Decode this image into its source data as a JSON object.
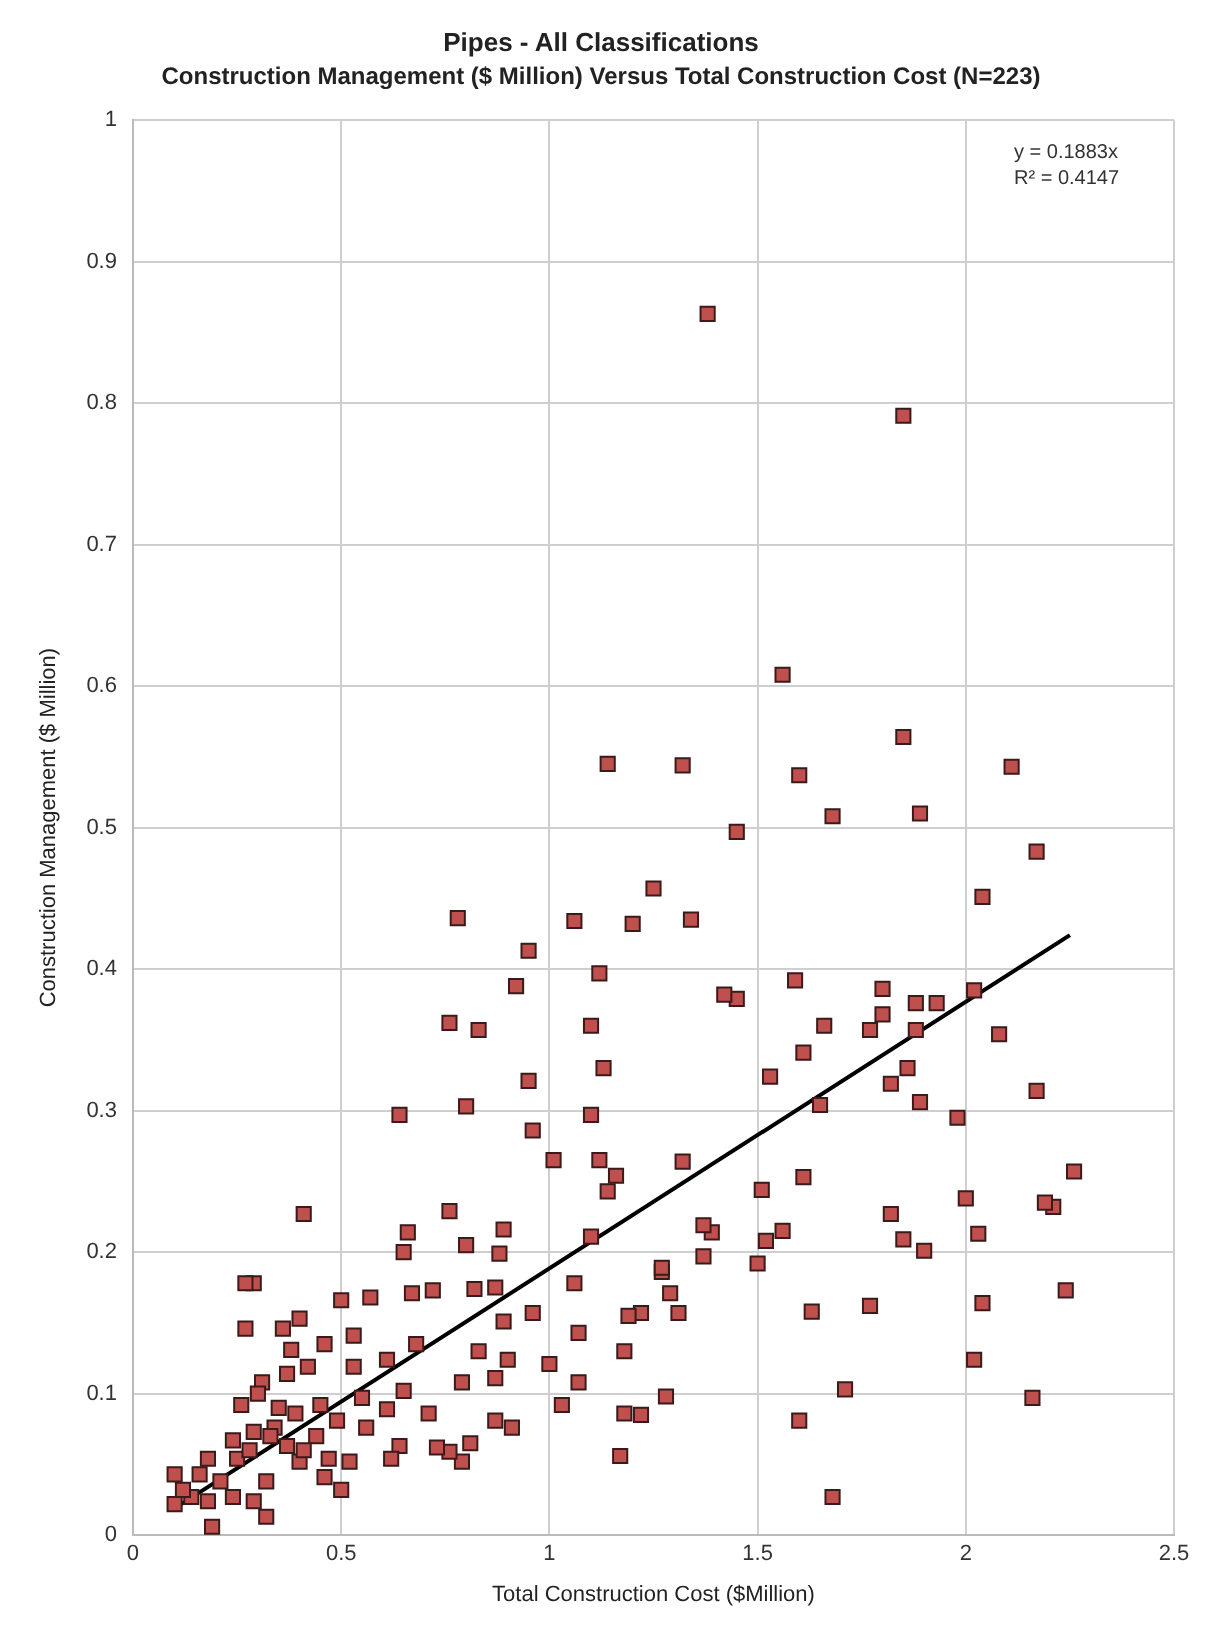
{
  "chart_data": {
    "type": "scatter",
    "title": "Pipes - All Classifications",
    "subtitle": "Construction Management ($ Million) Versus Total Construction Cost (N=223)",
    "xlabel": "Total Construction Cost ($Million)",
    "ylabel": "Construction Management ($ Million)",
    "xlim": [
      0,
      2.5
    ],
    "xticks": [
      0,
      0.5,
      1,
      1.5,
      2,
      2.5
    ],
    "ylim": [
      0,
      1
    ],
    "yticks": [
      0,
      0.1,
      0.2,
      0.3,
      0.4,
      0.5,
      0.6,
      0.7,
      0.8,
      0.9,
      1
    ],
    "grid": true,
    "legend": false,
    "marker": "square",
    "annotations": [
      "y = 0.1883x",
      "R² = 0.4147"
    ],
    "series": [
      {
        "color": "#c0504d",
        "x": [
          2.26,
          2.24,
          2.21,
          2.19,
          2.17,
          2.16,
          2.17,
          2.11,
          2.08,
          2.04,
          2.04,
          2.03,
          2.02,
          2.02,
          2.0,
          1.98,
          1.93,
          1.88,
          1.9,
          1.89,
          1.89,
          1.88,
          1.86,
          1.85,
          1.85,
          1.85,
          1.82,
          1.82,
          1.8,
          1.8,
          1.77,
          1.77,
          1.71,
          1.68,
          1.68,
          1.66,
          1.65,
          1.63,
          1.61,
          1.61,
          1.6,
          1.6,
          1.59,
          1.56,
          1.56,
          1.53,
          1.52,
          1.51,
          1.5,
          1.45,
          1.45,
          1.42,
          1.39,
          1.38,
          1.37,
          1.37,
          1.34,
          1.32,
          1.32,
          1.31,
          1.29,
          1.27,
          1.28,
          1.25,
          1.27,
          1.22,
          1.22,
          1.2,
          1.19,
          1.18,
          1.18,
          1.17,
          1.16,
          1.14,
          1.14,
          1.13,
          1.12,
          1.12,
          1.1,
          1.1,
          1.1,
          1.07,
          1.07,
          1.06,
          1.06,
          1.03,
          1.01,
          1.0,
          0.96,
          0.96,
          0.95,
          0.95,
          0.92,
          0.89,
          0.9,
          0.91,
          0.88,
          0.89,
          0.87,
          0.87,
          0.83,
          0.87,
          0.82,
          0.83,
          0.81,
          0.8,
          0.8,
          0.79,
          0.78,
          0.79,
          0.76,
          0.76,
          0.76,
          0.71,
          0.72,
          0.73,
          0.68,
          0.67,
          0.66,
          0.65,
          0.65,
          0.64,
          0.64,
          0.62,
          0.61,
          0.61,
          0.57,
          0.56,
          0.55,
          0.53,
          0.53,
          0.52,
          0.5,
          0.5,
          0.49,
          0.47,
          0.46,
          0.46,
          0.45,
          0.42,
          0.41,
          0.4,
          0.4,
          0.39,
          0.38,
          0.37,
          0.36,
          0.37,
          0.34,
          0.32,
          0.31,
          0.32,
          0.29,
          0.29,
          0.29,
          0.27,
          0.27,
          0.26,
          0.25,
          0.24,
          0.24,
          0.21,
          0.19,
          0.18,
          0.18,
          0.16,
          0.14,
          0.12,
          0.1,
          0.1,
          0.44,
          0.41,
          0.35,
          0.33,
          0.3,
          0.28
        ],
        "values": [
          0.257,
          0.173,
          0.232,
          0.235,
          0.483,
          0.097,
          0.314,
          0.543,
          0.354,
          0.451,
          0.164,
          0.213,
          0.385,
          0.124,
          0.238,
          0.295,
          0.376,
          0.376,
          0.201,
          0.306,
          0.51,
          0.357,
          0.33,
          0.209,
          0.791,
          0.564,
          0.319,
          0.227,
          0.386,
          0.368,
          0.357,
          0.162,
          0.103,
          0.508,
          0.027,
          0.36,
          0.304,
          0.158,
          0.341,
          0.253,
          0.537,
          0.081,
          0.392,
          0.608,
          0.215,
          0.324,
          0.208,
          0.244,
          0.192,
          0.497,
          0.379,
          0.382,
          0.214,
          0.863,
          0.197,
          0.219,
          0.435,
          0.544,
          0.264,
          0.157,
          0.171,
          0.186,
          0.098,
          0.457,
          0.189,
          0.157,
          0.085,
          0.432,
          0.155,
          0.13,
          0.086,
          0.056,
          0.254,
          0.545,
          0.243,
          0.33,
          0.397,
          0.265,
          0.297,
          0.36,
          0.211,
          0.108,
          0.143,
          0.434,
          0.178,
          0.092,
          0.265,
          0.121,
          0.286,
          0.157,
          0.413,
          0.321,
          0.388,
          0.216,
          0.124,
          0.076,
          0.199,
          0.151,
          0.111,
          0.175,
          0.357,
          0.081,
          0.174,
          0.13,
          0.065,
          0.303,
          0.205,
          0.108,
          0.436,
          0.052,
          0.362,
          0.229,
          0.059,
          0.086,
          0.173,
          0.062,
          0.135,
          0.171,
          0.214,
          0.2,
          0.102,
          0.063,
          0.297,
          0.054,
          0.124,
          0.089,
          0.168,
          0.076,
          0.097,
          0.141,
          0.119,
          0.052,
          0.166,
          0.032,
          0.081,
          0.054,
          0.135,
          0.041,
          0.092,
          0.119,
          0.227,
          0.153,
          0.052,
          0.086,
          0.131,
          0.114,
          0.146,
          0.063,
          0.076,
          0.038,
          0.108,
          0.013,
          0.178,
          0.073,
          0.024,
          0.178,
          0.146,
          0.092,
          0.054,
          0.067,
          0.027,
          0.038,
          0.006,
          0.054,
          0.024,
          0.043,
          0.027,
          0.032,
          0.022,
          0.043,
          0.07,
          0.06,
          0.09,
          0.07,
          0.1,
          0.06
        ]
      },
      {
        "type": "line",
        "color": "#000000",
        "marker": "none",
        "line_style": "solid",
        "x": [
          0.1,
          2.25
        ],
        "values": [
          0.019,
          0.424
        ]
      }
    ]
  }
}
